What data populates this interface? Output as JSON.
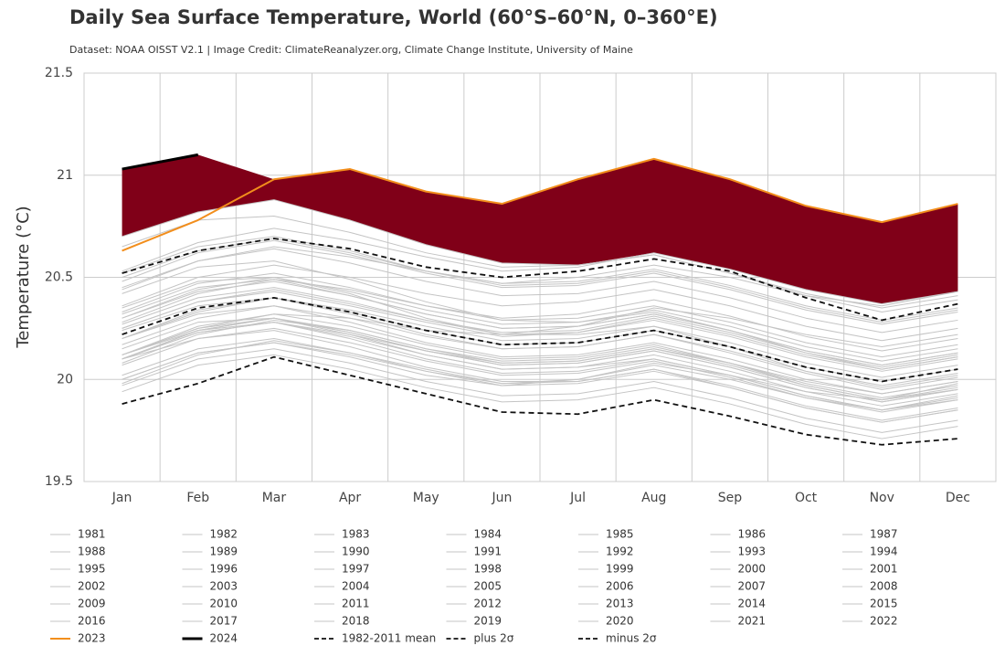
{
  "chart_data": {
    "type": "line",
    "title": "Daily Sea Surface Temperature, World (60°S–60°N, 0–360°E)",
    "subtitle": "Dataset: NOAA OISST V2.1 | Image Credit: ClimateReanalyzer.org, Climate Change Institute, University of Maine",
    "y_label": "Temperature (°C)",
    "categories": [
      "Jan",
      "Feb",
      "Mar",
      "Apr",
      "May",
      "Jun",
      "Jul",
      "Aug",
      "Sep",
      "Oct",
      "Nov",
      "Dec"
    ],
    "ylim": [
      19.5,
      21.5
    ],
    "yticks": [
      19.5,
      20,
      20.5,
      21,
      21.5
    ],
    "grid": true,
    "record_fill_color": "#800018",
    "series": [
      {
        "name": "1981",
        "color": "#c4c4c4",
        "values": [
          20.02,
          20.15,
          20.2,
          20.13,
          20.04,
          19.97,
          19.98,
          20.04,
          19.96,
          19.86,
          19.79,
          19.85
        ]
      },
      {
        "name": "1982",
        "color": "#c4c4c4",
        "values": [
          20.0,
          20.13,
          20.18,
          20.11,
          20.02,
          19.97,
          20.0,
          20.08,
          20.02,
          19.94,
          19.9,
          19.98
        ]
      },
      {
        "name": "1983",
        "color": "#c4c4c4",
        "values": [
          20.15,
          20.28,
          20.3,
          20.22,
          20.12,
          20.05,
          20.06,
          20.1,
          20.02,
          19.92,
          19.85,
          19.9
        ]
      },
      {
        "name": "1984",
        "color": "#c4c4c4",
        "values": [
          19.97,
          20.1,
          20.15,
          20.08,
          19.99,
          19.92,
          19.93,
          19.99,
          19.91,
          19.81,
          19.74,
          19.8
        ]
      },
      {
        "name": "1985",
        "color": "#c4c4c4",
        "values": [
          19.94,
          20.07,
          20.12,
          20.05,
          19.96,
          19.89,
          19.9,
          19.96,
          19.88,
          19.78,
          19.71,
          19.77
        ]
      },
      {
        "name": "1986",
        "color": "#c4c4c4",
        "values": [
          20.0,
          20.13,
          20.18,
          20.12,
          20.04,
          19.98,
          20.0,
          20.07,
          20.0,
          19.91,
          19.85,
          19.92
        ]
      },
      {
        "name": "1987",
        "color": "#c4c4c4",
        "values": [
          20.12,
          20.26,
          20.32,
          20.26,
          20.17,
          20.1,
          20.11,
          20.17,
          20.08,
          19.97,
          19.9,
          19.95
        ]
      },
      {
        "name": "1988",
        "color": "#c4c4c4",
        "values": [
          20.12,
          20.24,
          20.28,
          20.2,
          20.1,
          20.03,
          20.04,
          20.1,
          20.02,
          19.92,
          19.85,
          19.91
        ]
      },
      {
        "name": "1989",
        "color": "#c4c4c4",
        "values": [
          19.98,
          20.12,
          20.19,
          20.13,
          20.05,
          19.98,
          19.99,
          20.05,
          19.97,
          19.87,
          19.8,
          19.86
        ]
      },
      {
        "name": "1990",
        "color": "#c4c4c4",
        "values": [
          20.12,
          20.25,
          20.3,
          20.23,
          20.14,
          20.07,
          20.08,
          20.14,
          20.06,
          19.96,
          19.89,
          19.95
        ]
      },
      {
        "name": "1991",
        "color": "#c4c4c4",
        "values": [
          20.1,
          20.24,
          20.3,
          20.24,
          20.15,
          20.09,
          20.1,
          20.16,
          20.08,
          19.98,
          19.91,
          19.97
        ]
      },
      {
        "name": "1992",
        "color": "#c4c4c4",
        "values": [
          20.1,
          20.2,
          20.24,
          20.16,
          20.06,
          19.99,
          19.99,
          20.05,
          19.96,
          19.86,
          19.79,
          19.85
        ]
      },
      {
        "name": "1993",
        "color": "#c4c4c4",
        "values": [
          20.07,
          20.2,
          20.25,
          20.18,
          20.09,
          20.02,
          20.03,
          20.09,
          20.01,
          19.91,
          19.84,
          19.9
        ]
      },
      {
        "name": "1994",
        "color": "#c4c4c4",
        "values": [
          20.1,
          20.23,
          20.28,
          20.22,
          20.14,
          20.08,
          20.09,
          20.15,
          20.08,
          19.99,
          19.93,
          19.99
        ]
      },
      {
        "name": "1995",
        "color": "#c4c4c4",
        "values": [
          20.2,
          20.32,
          20.36,
          20.28,
          20.18,
          20.11,
          20.12,
          20.18,
          20.1,
          20.0,
          19.93,
          19.99
        ]
      },
      {
        "name": "1996",
        "color": "#c4c4c4",
        "values": [
          20.1,
          20.23,
          20.28,
          20.21,
          20.12,
          20.05,
          20.06,
          20.12,
          20.04,
          19.94,
          19.87,
          19.93
        ]
      },
      {
        "name": "1997",
        "color": "#c4c4c4",
        "values": [
          20.12,
          20.25,
          20.32,
          20.3,
          20.24,
          20.22,
          20.26,
          20.35,
          20.3,
          20.22,
          20.16,
          20.22
        ]
      },
      {
        "name": "1998",
        "color": "#c4c4c4",
        "values": [
          20.35,
          20.48,
          20.5,
          20.42,
          20.3,
          20.22,
          20.22,
          20.26,
          20.16,
          20.04,
          19.96,
          20.02
        ]
      },
      {
        "name": "1999",
        "color": "#c4c4c4",
        "values": [
          20.1,
          20.24,
          20.3,
          20.23,
          20.14,
          20.07,
          20.08,
          20.14,
          20.06,
          19.96,
          19.89,
          19.95
        ]
      },
      {
        "name": "2000",
        "color": "#c4c4c4",
        "values": [
          20.08,
          20.22,
          20.29,
          20.24,
          20.15,
          20.08,
          20.09,
          20.15,
          20.07,
          19.97,
          19.9,
          19.96
        ]
      },
      {
        "name": "2001",
        "color": "#c4c4c4",
        "values": [
          20.2,
          20.33,
          20.4,
          20.33,
          20.24,
          20.17,
          20.18,
          20.24,
          20.16,
          20.06,
          19.99,
          20.05
        ]
      },
      {
        "name": "2002",
        "color": "#c4c4c4",
        "values": [
          20.25,
          20.38,
          20.44,
          20.37,
          20.29,
          20.23,
          20.24,
          20.31,
          20.23,
          20.13,
          20.06,
          20.12
        ]
      },
      {
        "name": "2003",
        "color": "#c4c4c4",
        "values": [
          20.32,
          20.45,
          20.49,
          20.41,
          20.32,
          20.25,
          20.26,
          20.32,
          20.24,
          20.14,
          20.07,
          20.13
        ]
      },
      {
        "name": "2004",
        "color": "#c4c4c4",
        "values": [
          20.27,
          20.4,
          20.45,
          20.38,
          20.29,
          20.22,
          20.23,
          20.29,
          20.21,
          20.11,
          20.04,
          20.1
        ]
      },
      {
        "name": "2005",
        "color": "#c4c4c4",
        "values": [
          20.3,
          20.43,
          20.48,
          20.41,
          20.32,
          20.25,
          20.26,
          20.32,
          20.24,
          20.14,
          20.07,
          20.13
        ]
      },
      {
        "name": "2006",
        "color": "#c4c4c4",
        "values": [
          20.25,
          20.38,
          20.43,
          20.36,
          20.28,
          20.21,
          20.23,
          20.3,
          20.22,
          20.12,
          20.05,
          20.11
        ]
      },
      {
        "name": "2007",
        "color": "#c4c4c4",
        "values": [
          20.24,
          20.36,
          20.4,
          20.32,
          20.22,
          20.15,
          20.16,
          20.22,
          20.13,
          20.03,
          19.95,
          20.01
        ]
      },
      {
        "name": "2008",
        "color": "#c4c4c4",
        "values": [
          20.17,
          20.3,
          20.36,
          20.3,
          20.21,
          20.15,
          20.16,
          20.22,
          20.14,
          20.04,
          19.97,
          20.03
        ]
      },
      {
        "name": "2009",
        "color": "#c4c4c4",
        "values": [
          20.28,
          20.42,
          20.49,
          20.44,
          20.36,
          20.3,
          20.32,
          20.39,
          20.31,
          20.21,
          20.14,
          20.2
        ]
      },
      {
        "name": "2010",
        "color": "#c4c4c4",
        "values": [
          20.42,
          20.55,
          20.58,
          20.49,
          20.38,
          20.29,
          20.28,
          20.33,
          20.24,
          20.13,
          20.05,
          20.11
        ]
      },
      {
        "name": "2011",
        "color": "#c4c4c4",
        "values": [
          20.2,
          20.34,
          20.4,
          20.34,
          20.26,
          20.19,
          20.2,
          20.26,
          20.18,
          20.08,
          20.01,
          20.07
        ]
      },
      {
        "name": "2012",
        "color": "#c4c4c4",
        "values": [
          20.3,
          20.44,
          20.5,
          20.43,
          20.34,
          20.27,
          20.28,
          20.34,
          20.26,
          20.16,
          20.09,
          20.15
        ]
      },
      {
        "name": "2013",
        "color": "#c4c4c4",
        "values": [
          20.33,
          20.47,
          20.52,
          20.45,
          20.36,
          20.29,
          20.3,
          20.36,
          20.28,
          20.18,
          20.11,
          20.17
        ]
      },
      {
        "name": "2014",
        "color": "#c4c4c4",
        "values": [
          20.36,
          20.5,
          20.56,
          20.5,
          20.42,
          20.36,
          20.38,
          20.44,
          20.36,
          20.26,
          20.19,
          20.25
        ]
      },
      {
        "name": "2015",
        "color": "#c4c4c4",
        "values": [
          20.44,
          20.58,
          20.65,
          20.6,
          20.53,
          20.47,
          20.5,
          20.56,
          20.5,
          20.41,
          20.36,
          20.43
        ]
      },
      {
        "name": "2016",
        "color": "#c4c4c4",
        "values": [
          20.7,
          20.82,
          20.88,
          20.78,
          20.66,
          20.57,
          20.56,
          20.61,
          20.52,
          20.41,
          20.33,
          20.39
        ]
      },
      {
        "name": "2017",
        "color": "#c4c4c4",
        "values": [
          20.5,
          20.63,
          20.69,
          20.62,
          20.53,
          20.46,
          20.47,
          20.53,
          20.45,
          20.35,
          20.28,
          20.34
        ]
      },
      {
        "name": "2018",
        "color": "#c4c4c4",
        "values": [
          20.45,
          20.58,
          20.64,
          20.57,
          20.48,
          20.41,
          20.42,
          20.48,
          20.4,
          20.3,
          20.23,
          20.29
        ]
      },
      {
        "name": "2019",
        "color": "#c4c4c4",
        "values": [
          20.53,
          20.67,
          20.74,
          20.68,
          20.6,
          20.53,
          20.55,
          20.62,
          20.54,
          20.44,
          20.37,
          20.43
        ]
      },
      {
        "name": "2020",
        "color": "#c4c4c4",
        "values": [
          20.65,
          20.78,
          20.8,
          20.72,
          20.62,
          20.55,
          20.56,
          20.61,
          20.52,
          20.42,
          20.35,
          20.41
        ]
      },
      {
        "name": "2021",
        "color": "#c4c4c4",
        "values": [
          20.48,
          20.62,
          20.68,
          20.61,
          20.52,
          20.45,
          20.46,
          20.52,
          20.44,
          20.34,
          20.27,
          20.33
        ]
      },
      {
        "name": "2022",
        "color": "#c4c4c4",
        "values": [
          20.52,
          20.65,
          20.7,
          20.63,
          20.53,
          20.47,
          20.48,
          20.54,
          20.46,
          20.36,
          20.29,
          20.35
        ]
      },
      {
        "name": "2023",
        "color": "#f28e1c",
        "linewidth": 2,
        "values": [
          20.63,
          20.78,
          20.98,
          21.03,
          20.92,
          20.86,
          20.98,
          21.08,
          20.98,
          20.85,
          20.77,
          20.86
        ]
      },
      {
        "name": "2024",
        "color": "#000000",
        "linewidth": 3,
        "values": [
          21.03,
          21.1,
          null,
          null,
          null,
          null,
          null,
          null,
          null,
          null,
          null,
          null
        ]
      },
      {
        "name": "1982-2011 mean",
        "color": "#111111",
        "linewidth": 1.8,
        "dashed": true,
        "values": [
          20.22,
          20.35,
          20.4,
          20.33,
          20.24,
          20.17,
          20.18,
          20.24,
          20.16,
          20.06,
          19.99,
          20.05
        ]
      },
      {
        "name": "plus 2σ",
        "color": "#111111",
        "linewidth": 1.8,
        "dashed": true,
        "values": [
          20.52,
          20.63,
          20.69,
          20.64,
          20.55,
          20.5,
          20.53,
          20.59,
          20.53,
          20.4,
          20.29,
          20.37
        ]
      },
      {
        "name": "minus 2σ",
        "color": "#111111",
        "linewidth": 1.8,
        "dashed": true,
        "values": [
          19.88,
          19.98,
          20.11,
          20.02,
          19.93,
          19.84,
          19.83,
          19.9,
          19.82,
          19.73,
          19.68,
          19.71
        ]
      }
    ]
  }
}
